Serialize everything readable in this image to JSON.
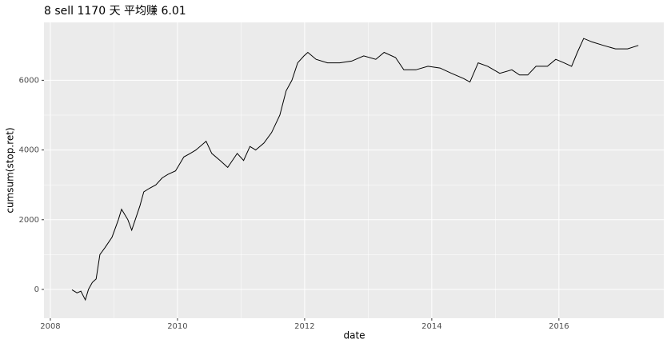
{
  "chart_data": {
    "type": "line",
    "title": "8 sell 1170 天 平均赚 6.01",
    "x_label": "date",
    "y_label": "cumsum(stop.ret)",
    "x": [
      2008.34,
      2008.42,
      2008.48,
      2008.55,
      2008.6,
      2008.66,
      2008.72,
      2008.78,
      2008.86,
      2008.97,
      2009.07,
      2009.12,
      2009.22,
      2009.28,
      2009.41,
      2009.47,
      2009.56,
      2009.66,
      2009.76,
      2009.85,
      2009.97,
      2010.1,
      2010.2,
      2010.29,
      2010.45,
      2010.54,
      2010.67,
      2010.79,
      2010.94,
      2011.04,
      2011.14,
      2011.23,
      2011.36,
      2011.48,
      2011.61,
      2011.71,
      2011.8,
      2011.89,
      2011.99,
      2012.05,
      2012.18,
      2012.36,
      2012.55,
      2012.74,
      2012.93,
      2013.12,
      2013.25,
      2013.43,
      2013.56,
      2013.75,
      2013.94,
      2014.13,
      2014.31,
      2014.5,
      2014.6,
      2014.73,
      2014.88,
      2015.07,
      2015.26,
      2015.38,
      2015.51,
      2015.64,
      2015.82,
      2015.95,
      2016.08,
      2016.2,
      2016.29,
      2016.39,
      2016.52,
      2016.7,
      2016.89,
      2017.08,
      2017.25
    ],
    "series": [
      {
        "color": "#000000",
        "values": [
          -10,
          -100,
          -50,
          -300,
          0,
          200,
          300,
          1000,
          1200,
          1500,
          2000,
          2300,
          2000,
          1700,
          2400,
          2800,
          2900,
          3000,
          3200,
          3300,
          3400,
          3800,
          3900,
          4000,
          4250,
          3900,
          3700,
          3500,
          3900,
          3700,
          4100,
          4000,
          4200,
          4500,
          5000,
          5700,
          6000,
          6500,
          6700,
          6800,
          6600,
          6500,
          6500,
          6550,
          6700,
          6600,
          6800,
          6650,
          6300,
          6300,
          6400,
          6350,
          6200,
          6050,
          5950,
          6500,
          6400,
          6200,
          6300,
          6150,
          6150,
          6400,
          6400,
          6600,
          6500,
          6400,
          6800,
          7200,
          7100,
          7000,
          6900,
          6900,
          7000
        ]
      }
    ],
    "xlim": [
      2007.9,
      2017.65
    ],
    "xticks": [
      2008,
      2010,
      2012,
      2014,
      2016
    ],
    "ylim": [
      -826,
      7660
    ],
    "yticks": [
      0,
      2000,
      4000,
      6000
    ],
    "grid": true
  }
}
